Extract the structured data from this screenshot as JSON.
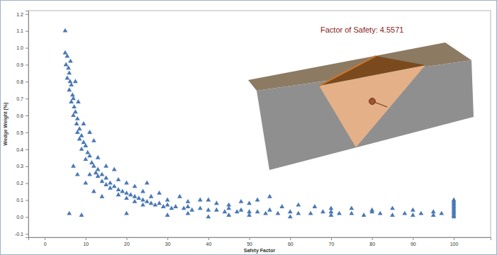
{
  "chart_data": {
    "type": "scatter",
    "x_label": "Safety Factor",
    "y_label": "Wedge Weight (%)",
    "annotation": "Factor of Safety: 4.5571",
    "color": "#4a78b5",
    "marker": "triangle",
    "grid": false,
    "xlim": [
      -4,
      109
    ],
    "xticks": [
      0,
      10,
      20,
      30,
      40,
      50,
      60,
      70,
      80,
      90,
      100
    ],
    "ylim": [
      -0.12,
      1.22
    ],
    "yticks": [
      -0.1,
      {
        "value": 0,
        "label": "0.0"
      },
      0.1,
      0.2,
      0.3,
      0.4,
      0.5,
      0.6,
      0.7,
      0.8,
      0.9,
      {
        "value": 1,
        "label": "1.0"
      },
      1.1,
      1.2
    ],
    "x": [
      5,
      5,
      5.5,
      5.2,
      5.8,
      6,
      5.5,
      6.2,
      6.5,
      6,
      6.8,
      7,
      6.5,
      7.2,
      7.5,
      7,
      8,
      7.8,
      8.5,
      8,
      9,
      8.5,
      9.5,
      10,
      9,
      10.5,
      11,
      10,
      12,
      11.5,
      12,
      13,
      12.5,
      14,
      13,
      15,
      14,
      16,
      15,
      17,
      16,
      18,
      19,
      20,
      18,
      21,
      22,
      20,
      23,
      24,
      22,
      25,
      26,
      24,
      28,
      27,
      30,
      29,
      32,
      31,
      34,
      35,
      36,
      38,
      40,
      42,
      44,
      45,
      47,
      48,
      50,
      52,
      54,
      55,
      57,
      60,
      62,
      65,
      68,
      70,
      72,
      75,
      78,
      80,
      82,
      85,
      88,
      90,
      92,
      95,
      97,
      6,
      9,
      7,
      8,
      10,
      12,
      14,
      11,
      15,
      18,
      20,
      22,
      24,
      26,
      28,
      30,
      33,
      35,
      38,
      42,
      45,
      48,
      50,
      52,
      55,
      58,
      62,
      66,
      70,
      75,
      80,
      85,
      90,
      95,
      40,
      25,
      17,
      13,
      9.5,
      7.5,
      6.3,
      8.2,
      11,
      100,
      100,
      100,
      100,
      100,
      100,
      100,
      100,
      100,
      100,
      100,
      20,
      30,
      40,
      60,
      50,
      70,
      35,
      45
    ],
    "values": [
      1.1,
      0.97,
      0.95,
      0.9,
      0.88,
      0.85,
      0.82,
      0.8,
      0.78,
      0.75,
      0.72,
      0.7,
      0.68,
      0.65,
      0.62,
      0.6,
      0.58,
      0.55,
      0.52,
      0.5,
      0.48,
      0.46,
      0.44,
      0.42,
      0.4,
      0.38,
      0.36,
      0.34,
      0.45,
      0.32,
      0.3,
      0.28,
      0.26,
      0.25,
      0.24,
      0.23,
      0.21,
      0.2,
      0.19,
      0.18,
      0.17,
      0.16,
      0.15,
      0.14,
      0.13,
      0.13,
      0.12,
      0.11,
      0.11,
      0.1,
      0.09,
      0.09,
      0.08,
      0.07,
      0.08,
      0.07,
      0.07,
      0.06,
      0.06,
      0.05,
      0.05,
      0.06,
      0.04,
      0.05,
      0.04,
      0.04,
      0.03,
      0.05,
      0.03,
      0.04,
      0.03,
      0.03,
      0.02,
      0.04,
      0.02,
      0.03,
      0.02,
      0.02,
      0.03,
      0.01,
      0.02,
      0.02,
      0.01,
      0.03,
      0.02,
      0.01,
      0.02,
      0.01,
      0.02,
      0.01,
      0.02,
      0.02,
      0.01,
      0.3,
      0.25,
      0.2,
      0.15,
      0.12,
      0.25,
      0.3,
      0.22,
      0.2,
      0.18,
      0.15,
      0.12,
      0.14,
      0.1,
      0.12,
      0.09,
      0.1,
      0.08,
      0.07,
      0.09,
      0.08,
      0.1,
      0.12,
      0.06,
      0.07,
      0.06,
      0.05,
      0.05,
      0.04,
      0.05,
      0.04,
      0.03,
      0.1,
      0.2,
      0.28,
      0.35,
      0.55,
      0.8,
      0.92,
      0.68,
      0.5,
      0.1,
      0.09,
      0.08,
      0.07,
      0.06,
      0.05,
      0.04,
      0.03,
      0.02,
      0.01,
      0,
      0.02,
      0.01,
      0,
      0,
      0.01,
      0.03,
      0.02,
      0.01
    ]
  }
}
